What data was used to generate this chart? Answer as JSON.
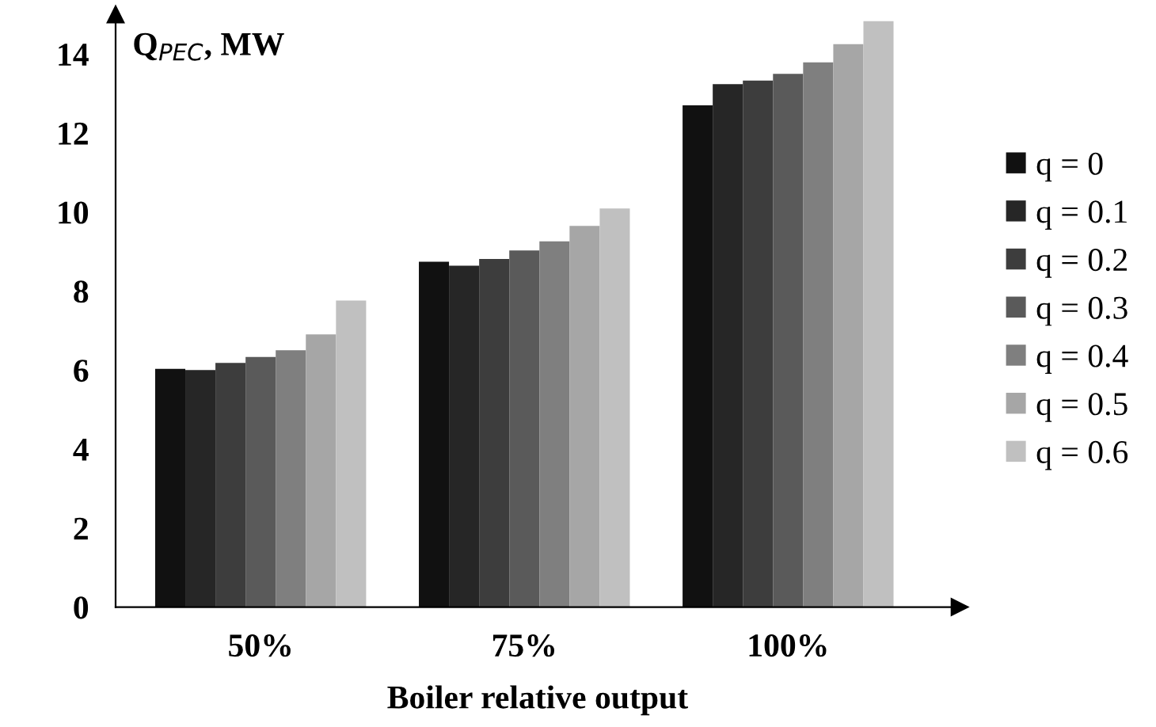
{
  "chart_data": {
    "type": "bar",
    "xlabel": "Boiler relative output",
    "ylabel": "Q$_{PEC}$, MW",
    "categories": [
      "50%",
      "75%",
      "100%"
    ],
    "series": [
      {
        "name": "q = 0",
        "color": "#111111",
        "values": [
          6.03,
          8.74,
          12.7
        ]
      },
      {
        "name": "q = 0.1",
        "color": "#262626",
        "values": [
          6.0,
          8.64,
          13.24
        ]
      },
      {
        "name": "q = 0.2",
        "color": "#3d3d3d",
        "values": [
          6.18,
          8.81,
          13.33
        ]
      },
      {
        "name": "q = 0.3",
        "color": "#5a5a5a",
        "values": [
          6.33,
          9.03,
          13.5
        ]
      },
      {
        "name": "q = 0.4",
        "color": "#7f7f7f",
        "values": [
          6.5,
          9.26,
          13.79
        ]
      },
      {
        "name": "q = 0.5",
        "color": "#a6a6a6",
        "values": [
          6.9,
          9.65,
          14.25
        ]
      },
      {
        "name": "q = 0.6",
        "color": "#c0c0c0",
        "values": [
          7.76,
          10.09,
          14.83
        ]
      }
    ],
    "ylim": [
      0,
      15
    ],
    "yticks": [
      0,
      2,
      4,
      6,
      8,
      10,
      12,
      14
    ],
    "grid": false,
    "legend": "right"
  }
}
